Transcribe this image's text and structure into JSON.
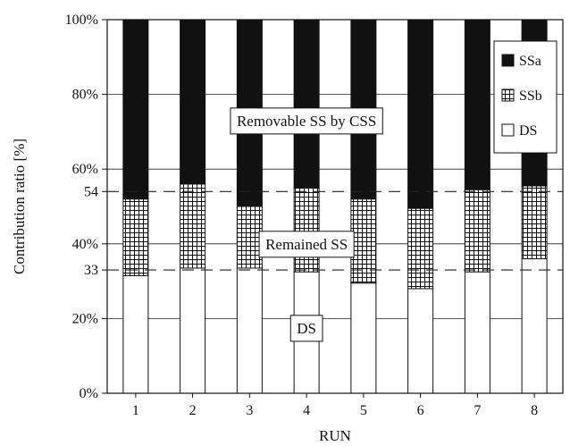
{
  "chart_data": {
    "type": "bar",
    "stacked": true,
    "percent_scale": true,
    "xlabel": "RUN",
    "ylabel": "Contribution ratio [%]",
    "categories": [
      "1",
      "2",
      "3",
      "4",
      "5",
      "6",
      "7",
      "8"
    ],
    "ylim": [
      0,
      100
    ],
    "y_ticks": [
      {
        "value": 0,
        "label": "0%"
      },
      {
        "value": 20,
        "label": "20%"
      },
      {
        "value": 33,
        "label": "33"
      },
      {
        "value": 40,
        "label": "40%"
      },
      {
        "value": 54,
        "label": "54"
      },
      {
        "value": 60,
        "label": "60%"
      },
      {
        "value": 80,
        "label": "80%"
      },
      {
        "value": 100,
        "label": "100%"
      }
    ],
    "gridlines_at": [
      20,
      40,
      60,
      80
    ],
    "reference_lines": [
      54,
      33
    ],
    "series": [
      {
        "name": "DS",
        "pattern": "blank",
        "values": [
          31.5,
          33.5,
          33.5,
          32.5,
          29.5,
          28,
          32.5,
          36
        ]
      },
      {
        "name": "SSb",
        "pattern": "grid",
        "values": [
          20.5,
          22.5,
          16.5,
          22.5,
          22.5,
          21.5,
          22,
          19.5
        ]
      },
      {
        "name": "SSa",
        "pattern": "solid",
        "values": [
          48,
          44,
          50,
          45,
          48,
          50.5,
          45.5,
          44.5
        ]
      }
    ],
    "legend": {
      "position": "top-right",
      "entries": [
        "SSa",
        "SSb",
        "DS"
      ]
    },
    "annotations": [
      {
        "text": "Removable SS by CSS",
        "y": 73
      },
      {
        "text": "Remained SS",
        "y": 40
      },
      {
        "text": "DS",
        "y": 17.5
      }
    ],
    "colors": {
      "solid": "#111111",
      "grid_line": "#111111",
      "background": "#ffffff"
    }
  }
}
